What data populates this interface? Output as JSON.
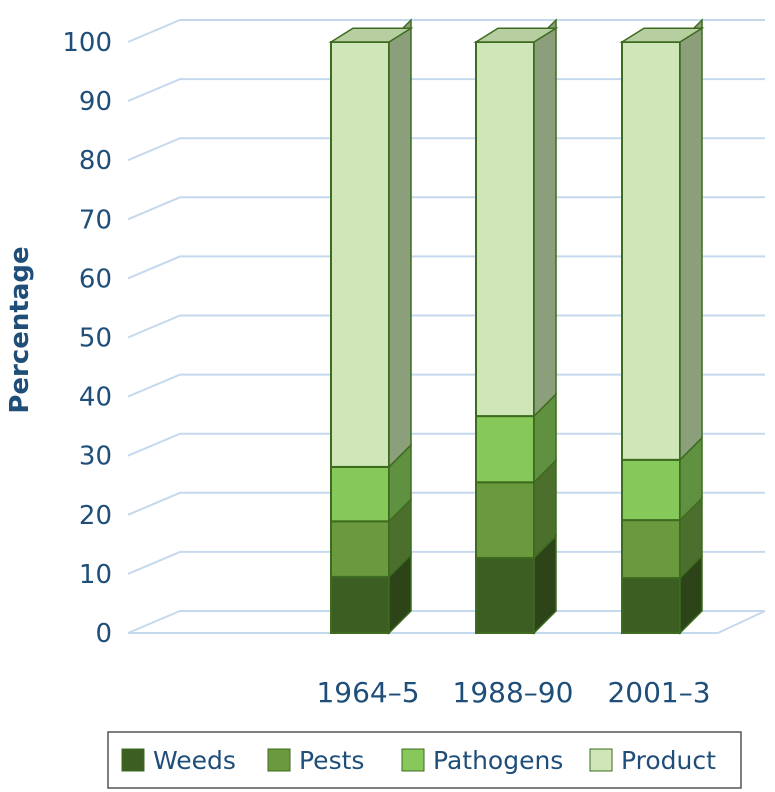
{
  "chart_data": {
    "type": "bar",
    "stacked": true,
    "three_d": true,
    "categories": [
      "1964–5",
      "1988–90",
      "2001–3"
    ],
    "series": [
      {
        "name": "Weeds",
        "values": [
          9.5,
          12.7,
          9.3
        ],
        "color": "#3d5e22"
      },
      {
        "name": "Pests",
        "values": [
          9.4,
          12.8,
          9.8
        ],
        "color": "#6b9a3e"
      },
      {
        "name": "Pathogens",
        "values": [
          9.2,
          11.2,
          10.2
        ],
        "color": "#86c95a"
      },
      {
        "name": "Product",
        "values": [
          71.9,
          63.3,
          70.7
        ],
        "color": "#cfe6b8"
      }
    ],
    "title": "",
    "xlabel": "",
    "ylabel": "Percentage",
    "ylim": [
      0,
      100
    ],
    "yticks": [
      0,
      10,
      20,
      30,
      40,
      50,
      60,
      70,
      80,
      90,
      100
    ],
    "grid": true,
    "legend": "bottom",
    "colors": {
      "axis_text": "#1f4e79",
      "grid": "#c5d9ee",
      "bar_edge": "#3d6b1f"
    }
  }
}
